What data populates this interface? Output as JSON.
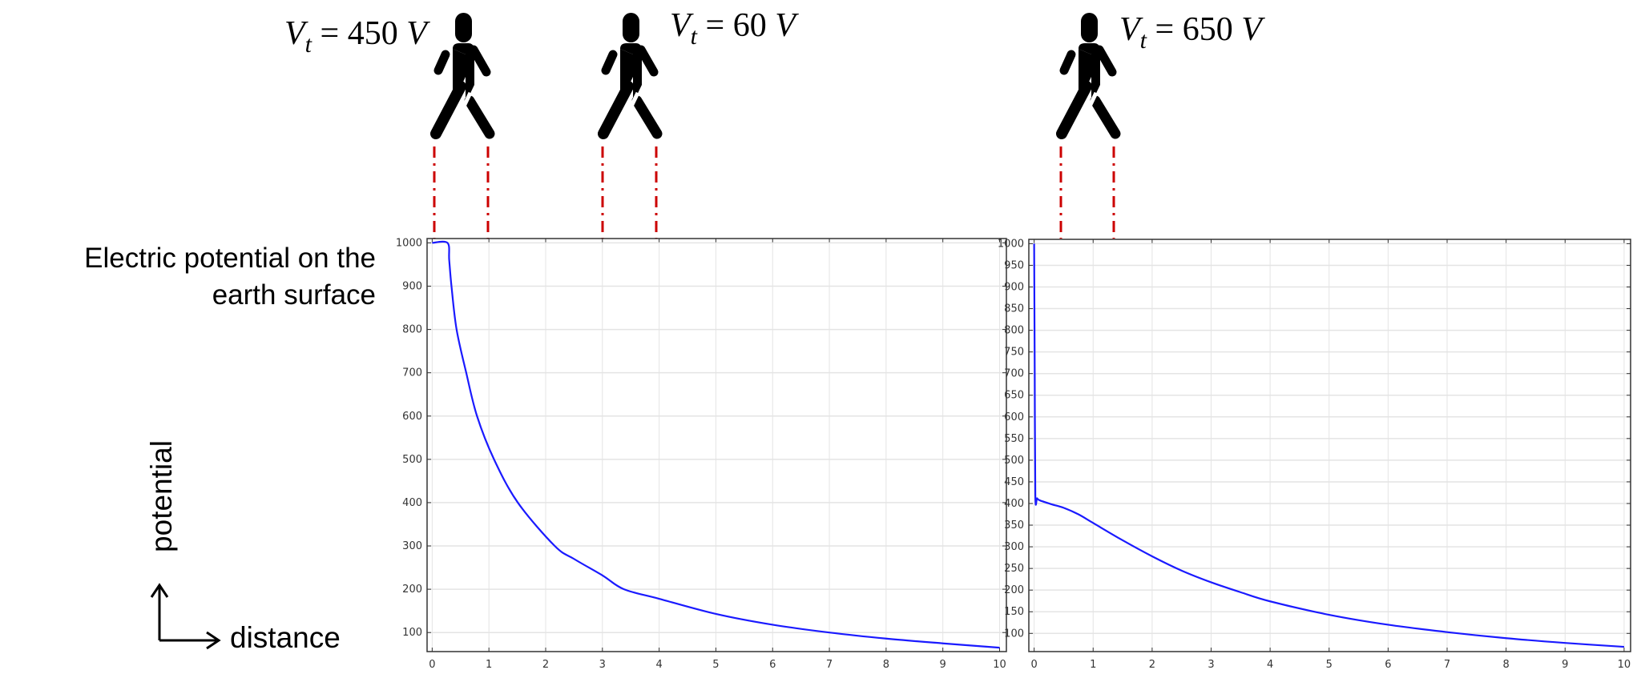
{
  "title": {
    "line1": "Electric potential on the",
    "line2": "earth surface"
  },
  "axes_legend": {
    "y_label": "potential",
    "x_label": "distance"
  },
  "walkers": [
    {
      "var": "V",
      "sub": "t",
      "eq": "=",
      "value": "450",
      "unit": "V"
    },
    {
      "var": "V",
      "sub": "t",
      "eq": "=",
      "value": "60",
      "unit": "V"
    },
    {
      "var": "V",
      "sub": "t",
      "eq": "=",
      "value": "650",
      "unit": "V"
    }
  ],
  "colors": {
    "curve": "#1a1aff",
    "marker_lines": "#cc0000",
    "grid": "#e4e4e4",
    "frame": "#333333"
  },
  "chart_data": [
    {
      "type": "line",
      "xlim": [
        -0.09,
        10.12
      ],
      "ylim": [
        56,
        1010
      ],
      "x_ticks": [
        0,
        1,
        2,
        3,
        4,
        5,
        6,
        7,
        8,
        9,
        10
      ],
      "y_ticks": [
        100,
        200,
        300,
        400,
        500,
        600,
        700,
        800,
        900,
        1000
      ],
      "grid": true,
      "series": [
        {
          "x": [
            0,
            0.27,
            0.3,
            0.34,
            0.43,
            0.6,
            0.79,
            1.09,
            1.51,
            2.16,
            2.5,
            3.0,
            3.38,
            4.0,
            5.0,
            6.0,
            7.0,
            8.0,
            9.0,
            10.0
          ],
          "y": [
            1000,
            1000,
            960,
            900,
            800,
            700,
            600,
            500,
            400,
            300,
            270,
            232,
            200,
            178,
            143,
            118,
            100,
            86,
            75,
            65
          ]
        }
      ]
    },
    {
      "type": "line",
      "xlim": [
        -0.09,
        10.11
      ],
      "ylim": [
        58,
        1010
      ],
      "x_ticks": [
        0,
        1,
        2,
        3,
        4,
        5,
        6,
        7,
        8,
        9,
        10
      ],
      "y_ticks": [
        100,
        150,
        200,
        250,
        300,
        350,
        400,
        450,
        500,
        550,
        600,
        650,
        700,
        750,
        800,
        850,
        900,
        950,
        1000
      ],
      "grid": true,
      "series": [
        {
          "x": [
            0,
            0.01,
            0.02,
            0.05,
            0.1,
            0.3,
            0.5,
            0.75,
            1.0,
            1.5,
            2.0,
            2.5,
            3.0,
            3.5,
            4.0,
            5.0,
            6.0,
            7.0,
            8.0,
            9.0,
            10.0
          ],
          "y": [
            1000,
            700,
            420,
            412,
            407,
            398,
            390,
            375,
            355,
            315,
            278,
            245,
            218,
            195,
            174,
            143,
            120,
            103,
            89,
            78,
            69
          ]
        }
      ]
    }
  ]
}
